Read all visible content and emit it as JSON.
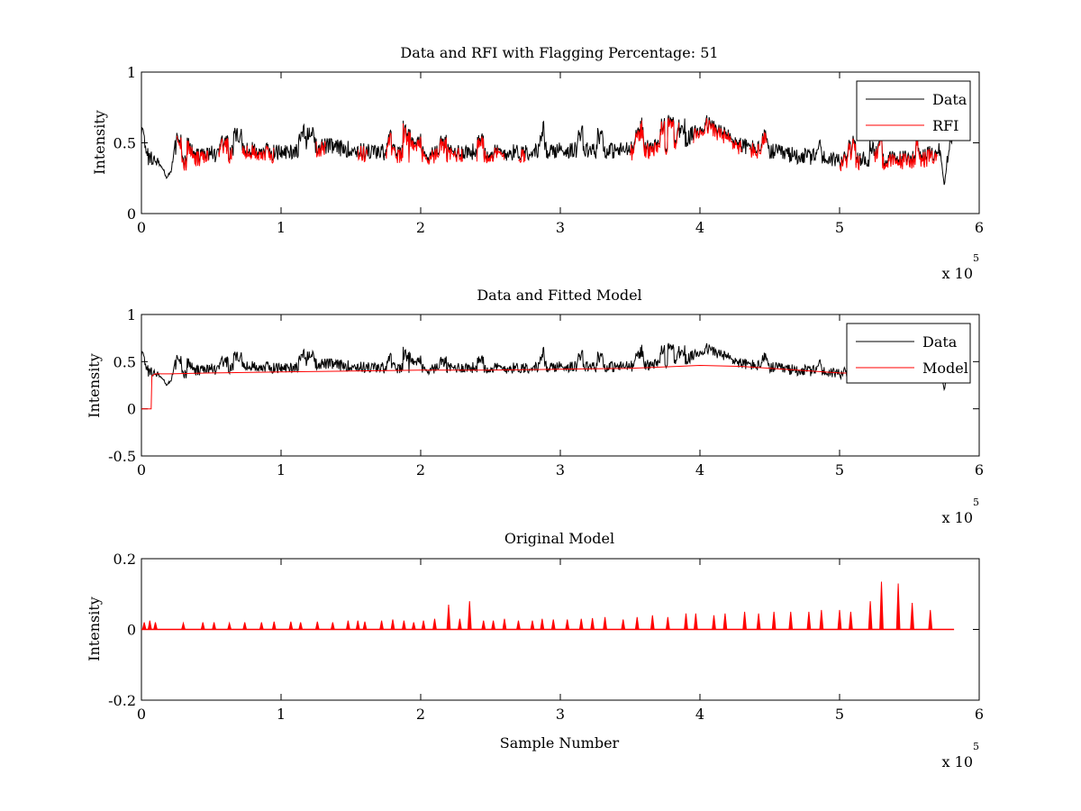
{
  "figure": {
    "background": "#ffffff"
  },
  "chart_data": [
    {
      "type": "line",
      "title": "Data and RFI with Flagging Percentage: 51",
      "xlabel": "",
      "ylabel": "Intensity",
      "xlim": [
        0,
        6
      ],
      "ylim": [
        0,
        1
      ],
      "x_multiplier_label": "x 10",
      "x_multiplier_exponent": "5",
      "xticks": [
        0,
        1,
        2,
        3,
        4,
        5,
        6
      ],
      "yticks": [
        0,
        0.5,
        1
      ],
      "ytick_labels": [
        "0",
        "0.5",
        "1"
      ],
      "grid": false,
      "legend": {
        "position": "top-right",
        "entries": [
          {
            "label": "Data",
            "color": "#000000"
          },
          {
            "label": "RFI",
            "color": "#ff0000"
          }
        ]
      },
      "series": [
        {
          "name": "Data",
          "color": "#000000",
          "x": [
            0,
            0.05,
            0.1,
            0.15,
            0.18,
            0.22,
            0.3,
            0.5,
            0.8,
            1.0,
            1.3,
            1.6,
            2.0,
            2.3,
            2.6,
            3.0,
            3.3,
            3.6,
            3.9,
            4.05,
            4.3,
            4.6,
            5.0,
            5.3,
            5.6,
            5.72,
            5.75,
            5.78,
            5.82
          ],
          "y": [
            0.6,
            0.4,
            0.38,
            0.33,
            0.25,
            0.32,
            0.38,
            0.42,
            0.45,
            0.43,
            0.48,
            0.44,
            0.42,
            0.44,
            0.43,
            0.45,
            0.44,
            0.46,
            0.52,
            0.64,
            0.48,
            0.42,
            0.38,
            0.38,
            0.4,
            0.45,
            0.2,
            0.42,
            0.5
          ]
        },
        {
          "name": "RFI",
          "color": "#ff0000",
          "segments": [
            [
              0.25,
              0.48
            ],
            [
              0.55,
              0.65
            ],
            [
              0.72,
              0.95
            ],
            [
              1.25,
              1.32
            ],
            [
              1.55,
              1.62
            ],
            [
              1.75,
              2.3
            ],
            [
              2.4,
              2.6
            ],
            [
              2.7,
              2.75
            ],
            [
              3.5,
              3.85
            ],
            [
              3.95,
              4.3
            ],
            [
              4.35,
              4.48
            ],
            [
              5.0,
              5.15
            ],
            [
              5.25,
              5.7
            ]
          ]
        }
      ]
    },
    {
      "type": "line",
      "title": "Data and Fitted Model",
      "xlabel": "",
      "ylabel": "Intensity",
      "xlim": [
        0,
        6
      ],
      "ylim": [
        -0.5,
        1
      ],
      "x_multiplier_label": "x 10",
      "x_multiplier_exponent": "5",
      "xticks": [
        0,
        1,
        2,
        3,
        4,
        5,
        6
      ],
      "yticks": [
        -0.5,
        0,
        0.5,
        1
      ],
      "ytick_labels": [
        "-0.5",
        "0",
        "0.5",
        "1"
      ],
      "grid": false,
      "legend": {
        "position": "top-right",
        "entries": [
          {
            "label": "Data",
            "color": "#000000"
          },
          {
            "label": "Model",
            "color": "#ff0000"
          }
        ]
      },
      "series": [
        {
          "name": "Data",
          "color": "#000000",
          "x": [
            0,
            0.05,
            0.1,
            0.15,
            0.18,
            0.22,
            0.3,
            0.5,
            0.8,
            1.0,
            1.3,
            1.6,
            2.0,
            2.3,
            2.6,
            3.0,
            3.3,
            3.6,
            3.9,
            4.05,
            4.3,
            4.6,
            5.0,
            5.3,
            5.6,
            5.72,
            5.75,
            5.78,
            5.82
          ],
          "y": [
            0.6,
            0.4,
            0.38,
            0.33,
            0.25,
            0.32,
            0.38,
            0.42,
            0.45,
            0.43,
            0.48,
            0.44,
            0.42,
            0.44,
            0.43,
            0.45,
            0.44,
            0.46,
            0.52,
            0.64,
            0.48,
            0.42,
            0.38,
            0.38,
            0.4,
            0.45,
            0.2,
            0.42,
            0.5
          ]
        },
        {
          "name": "Model",
          "color": "#ff0000",
          "x": [
            0,
            0.07,
            0.075,
            0.1,
            0.2,
            0.5,
            1.0,
            1.5,
            2.0,
            2.5,
            3.0,
            3.5,
            4.0,
            4.3,
            4.6,
            5.0,
            5.3,
            5.6,
            5.82
          ],
          "y": [
            0,
            0,
            0.35,
            0.37,
            0.37,
            0.38,
            0.39,
            0.4,
            0.41,
            0.41,
            0.42,
            0.43,
            0.46,
            0.45,
            0.42,
            0.38,
            0.37,
            0.37,
            0.37
          ]
        }
      ]
    },
    {
      "type": "line",
      "title": "Original Model",
      "xlabel": "Sample Number",
      "ylabel": "Intensity",
      "xlim": [
        0,
        6
      ],
      "ylim": [
        -0.2,
        0.2
      ],
      "x_multiplier_label": "x 10",
      "x_multiplier_exponent": "5",
      "xticks": [
        0,
        1,
        2,
        3,
        4,
        5,
        6
      ],
      "yticks": [
        -0.2,
        0,
        0.2
      ],
      "ytick_labels": [
        "-0.2",
        "0",
        "0.2"
      ],
      "grid": false,
      "legend": null,
      "series": [
        {
          "name": "",
          "color": "#ff0000",
          "baseline_x": [
            0,
            5.82
          ],
          "peaks_x": [
            0.02,
            0.06,
            0.1,
            0.3,
            0.44,
            0.52,
            0.63,
            0.74,
            0.86,
            0.95,
            1.07,
            1.14,
            1.26,
            1.37,
            1.48,
            1.55,
            1.6,
            1.72,
            1.8,
            1.88,
            1.95,
            2.02,
            2.1,
            2.2,
            2.28,
            2.35,
            2.45,
            2.52,
            2.6,
            2.7,
            2.8,
            2.87,
            2.95,
            3.05,
            3.15,
            3.23,
            3.32,
            3.45,
            3.55,
            3.66,
            3.77,
            3.9,
            3.97,
            4.1,
            4.18,
            4.32,
            4.42,
            4.53,
            4.65,
            4.78,
            4.87,
            5.0,
            5.08,
            5.22,
            5.3,
            5.42,
            5.52,
            5.65
          ],
          "peaks_y": [
            0.02,
            0.025,
            0.02,
            0.018,
            0.02,
            0.02,
            0.018,
            0.02,
            0.02,
            0.022,
            0.022,
            0.02,
            0.022,
            0.02,
            0.025,
            0.025,
            0.022,
            0.025,
            0.028,
            0.025,
            0.02,
            0.025,
            0.03,
            0.07,
            0.03,
            0.08,
            0.025,
            0.025,
            0.03,
            0.025,
            0.025,
            0.03,
            0.028,
            0.028,
            0.03,
            0.032,
            0.035,
            0.028,
            0.035,
            0.04,
            0.035,
            0.045,
            0.045,
            0.04,
            0.045,
            0.05,
            0.045,
            0.05,
            0.05,
            0.05,
            0.055,
            0.055,
            0.05,
            0.08,
            0.135,
            0.13,
            0.075,
            0.055
          ]
        }
      ]
    }
  ]
}
